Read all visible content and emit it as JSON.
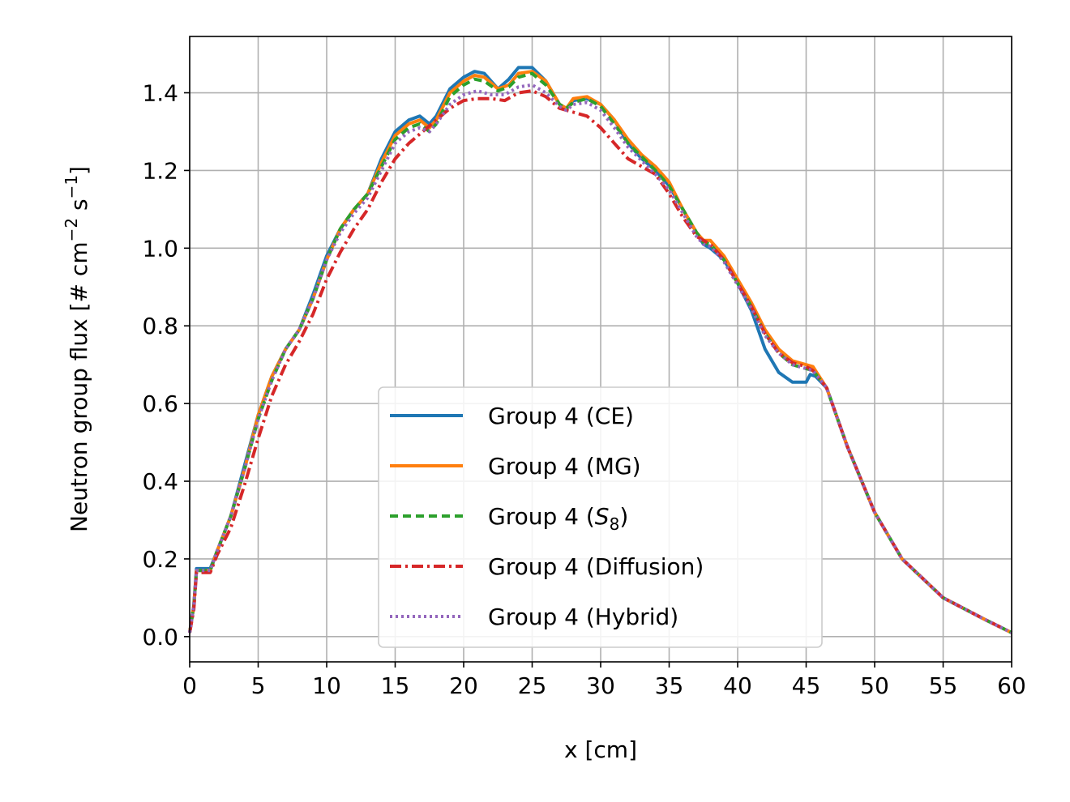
{
  "chart_data": {
    "type": "line",
    "title": "",
    "xlabel": "x [cm]",
    "ylabel": "Neutron group flux [# cm",
    "ylabel_sup1": "−2",
    "ylabel_mid": " s",
    "ylabel_sup2": "−1",
    "ylabel_end": "]",
    "xlim": [
      0,
      60
    ],
    "ylim": [
      -0.065,
      1.545
    ],
    "xticks": [
      0,
      5,
      10,
      15,
      20,
      25,
      30,
      35,
      40,
      45,
      50,
      55,
      60
    ],
    "xtick_labels": [
      "0",
      "5",
      "10",
      "15",
      "20",
      "25",
      "30",
      "35",
      "40",
      "45",
      "50",
      "55",
      "60"
    ],
    "yticks": [
      0.0,
      0.2,
      0.4,
      0.6,
      0.8,
      1.0,
      1.2,
      1.4
    ],
    "ytick_labels": [
      "0.0",
      "0.2",
      "0.4",
      "0.6",
      "0.8",
      "1.0",
      "1.2",
      "1.4"
    ],
    "grid": true,
    "legend_position": "lower-center",
    "series": [
      {
        "name": "Group 4 (CE)",
        "label_main": "Group 4 (CE)",
        "label_sub": "",
        "label_end": "",
        "color": "#1f77b4",
        "dash": "solid",
        "x": [
          0,
          0.3,
          0.5,
          1.5,
          2,
          3,
          4,
          5,
          6,
          7,
          8,
          9,
          10,
          11,
          12,
          13,
          14,
          15,
          16,
          16.8,
          17.5,
          18,
          19,
          20,
          20.8,
          21.5,
          22.5,
          23.3,
          24,
          25,
          26,
          27,
          27.5,
          28,
          29,
          30,
          31,
          32,
          33,
          34,
          35,
          36,
          37,
          37.5,
          38,
          39,
          40,
          41,
          41.5,
          42,
          43,
          44,
          45,
          45.3,
          45.7,
          46.5,
          48,
          50,
          52,
          55,
          58,
          60
        ],
        "y": [
          0.01,
          0.08,
          0.175,
          0.175,
          0.22,
          0.31,
          0.44,
          0.57,
          0.67,
          0.74,
          0.79,
          0.88,
          0.98,
          1.05,
          1.1,
          1.14,
          1.23,
          1.3,
          1.33,
          1.34,
          1.32,
          1.34,
          1.41,
          1.44,
          1.455,
          1.45,
          1.41,
          1.435,
          1.465,
          1.465,
          1.43,
          1.37,
          1.36,
          1.38,
          1.385,
          1.37,
          1.33,
          1.27,
          1.23,
          1.2,
          1.16,
          1.1,
          1.04,
          1.01,
          1.0,
          0.97,
          0.91,
          0.84,
          0.79,
          0.74,
          0.68,
          0.655,
          0.655,
          0.675,
          0.67,
          0.64,
          0.49,
          0.32,
          0.2,
          0.1,
          0.045,
          0.01
        ]
      },
      {
        "name": "Group 4 (MG)",
        "label_main": "Group 4 (MG)",
        "label_sub": "",
        "label_end": "",
        "color": "#ff7f0e",
        "dash": "solid",
        "x": [
          0,
          0.3,
          0.5,
          1.5,
          2,
          3,
          4,
          5,
          6,
          7,
          8,
          9,
          10,
          11,
          12,
          13,
          14,
          15,
          16,
          16.8,
          17.5,
          18,
          19,
          20,
          20.8,
          21.5,
          22.5,
          23.3,
          24,
          25,
          26,
          27,
          27.5,
          28,
          29,
          30,
          31,
          32,
          33,
          34,
          35,
          36,
          37,
          37.5,
          38,
          39,
          40,
          41,
          42,
          43,
          44,
          45,
          45.5,
          46.5,
          48,
          50,
          52,
          55,
          58,
          60
        ],
        "y": [
          0.01,
          0.08,
          0.17,
          0.17,
          0.22,
          0.31,
          0.43,
          0.57,
          0.67,
          0.74,
          0.79,
          0.87,
          0.97,
          1.05,
          1.1,
          1.14,
          1.22,
          1.29,
          1.32,
          1.33,
          1.31,
          1.33,
          1.4,
          1.43,
          1.445,
          1.44,
          1.41,
          1.42,
          1.45,
          1.455,
          1.43,
          1.37,
          1.36,
          1.385,
          1.39,
          1.37,
          1.33,
          1.28,
          1.24,
          1.21,
          1.17,
          1.1,
          1.04,
          1.02,
          1.02,
          0.98,
          0.92,
          0.86,
          0.79,
          0.74,
          0.71,
          0.7,
          0.695,
          0.64,
          0.49,
          0.32,
          0.2,
          0.1,
          0.045,
          0.01
        ]
      },
      {
        "name": "Group 4 (S8)",
        "label_main": "Group 4 (",
        "label_sub": "8",
        "label_end": ")",
        "color": "#2ca02c",
        "dash": "10,6",
        "x": [
          0,
          0.3,
          0.5,
          1.5,
          2,
          3,
          4,
          5,
          6,
          7,
          8,
          9,
          10,
          11,
          12,
          13,
          14,
          15,
          16,
          16.8,
          17.5,
          18,
          19,
          20,
          20.8,
          21.5,
          22.5,
          23.3,
          24,
          25,
          26,
          27,
          27.5,
          28,
          29,
          30,
          31,
          32,
          33,
          34,
          35,
          36,
          37,
          37.5,
          38,
          39,
          40,
          41,
          42,
          43,
          44,
          45,
          45.5,
          46.5,
          48,
          50,
          52,
          55,
          58,
          60
        ],
        "y": [
          0.01,
          0.08,
          0.17,
          0.17,
          0.22,
          0.31,
          0.43,
          0.56,
          0.66,
          0.74,
          0.79,
          0.87,
          0.97,
          1.05,
          1.1,
          1.14,
          1.21,
          1.28,
          1.31,
          1.32,
          1.3,
          1.32,
          1.39,
          1.42,
          1.435,
          1.43,
          1.405,
          1.415,
          1.44,
          1.45,
          1.42,
          1.37,
          1.36,
          1.375,
          1.385,
          1.365,
          1.32,
          1.27,
          1.235,
          1.2,
          1.16,
          1.1,
          1.04,
          1.015,
          1.01,
          0.97,
          0.91,
          0.85,
          0.78,
          0.73,
          0.7,
          0.69,
          0.685,
          0.64,
          0.49,
          0.32,
          0.2,
          0.1,
          0.045,
          0.01
        ]
      },
      {
        "name": "Group 4 (Diffusion)",
        "label_main": "Group 4 (Diffusion)",
        "label_sub": "",
        "label_end": "",
        "color": "#d62728",
        "dash": "14,5,3,5",
        "x": [
          0,
          0.3,
          0.5,
          1.5,
          2,
          3,
          4,
          5,
          6,
          7,
          8,
          9,
          10,
          11,
          12,
          13,
          14,
          15,
          16,
          17,
          18,
          19,
          20,
          21,
          22,
          23,
          24,
          25,
          26,
          27,
          28,
          29,
          30,
          31,
          32,
          33,
          34,
          35,
          36,
          37,
          38,
          39,
          40,
          41,
          42,
          43,
          44,
          45,
          45.5,
          46.5,
          48,
          50,
          52,
          55,
          58,
          60
        ],
        "y": [
          0.01,
          0.07,
          0.165,
          0.165,
          0.21,
          0.28,
          0.39,
          0.51,
          0.62,
          0.7,
          0.76,
          0.83,
          0.92,
          0.99,
          1.05,
          1.1,
          1.17,
          1.23,
          1.27,
          1.3,
          1.33,
          1.36,
          1.38,
          1.385,
          1.385,
          1.38,
          1.4,
          1.405,
          1.39,
          1.36,
          1.35,
          1.34,
          1.31,
          1.27,
          1.23,
          1.21,
          1.19,
          1.14,
          1.08,
          1.03,
          1.01,
          0.97,
          0.91,
          0.85,
          0.78,
          0.73,
          0.705,
          0.695,
          0.685,
          0.64,
          0.49,
          0.32,
          0.2,
          0.1,
          0.045,
          0.01
        ]
      },
      {
        "name": "Group 4 (Hybrid)",
        "label_main": "Group 4 (Hybrid)",
        "label_sub": "",
        "label_end": "",
        "color": "#9467bd",
        "dash": "3,4",
        "x": [
          0,
          0.3,
          0.5,
          1.5,
          2,
          3,
          4,
          5,
          6,
          7,
          8,
          9,
          10,
          11,
          12,
          13,
          14,
          15,
          16,
          16.8,
          17.5,
          18,
          19,
          20,
          21,
          22,
          23,
          24,
          25,
          26,
          27,
          27.5,
          28,
          29,
          30,
          31,
          32,
          33,
          34,
          35,
          36,
          37,
          37.5,
          38,
          39,
          40,
          41,
          42,
          43,
          44,
          45,
          45.5,
          46.5,
          48,
          50,
          52,
          55,
          58,
          60
        ],
        "y": [
          0.01,
          0.08,
          0.17,
          0.17,
          0.22,
          0.31,
          0.43,
          0.56,
          0.66,
          0.74,
          0.79,
          0.87,
          0.97,
          1.04,
          1.09,
          1.13,
          1.2,
          1.27,
          1.3,
          1.31,
          1.3,
          1.32,
          1.37,
          1.395,
          1.405,
          1.395,
          1.395,
          1.415,
          1.42,
          1.4,
          1.365,
          1.355,
          1.37,
          1.375,
          1.355,
          1.31,
          1.26,
          1.225,
          1.19,
          1.15,
          1.09,
          1.03,
          1.01,
          1.005,
          0.965,
          0.905,
          0.845,
          0.775,
          0.73,
          0.7,
          0.69,
          0.685,
          0.64,
          0.49,
          0.32,
          0.2,
          0.1,
          0.045,
          0.01
        ]
      }
    ]
  }
}
